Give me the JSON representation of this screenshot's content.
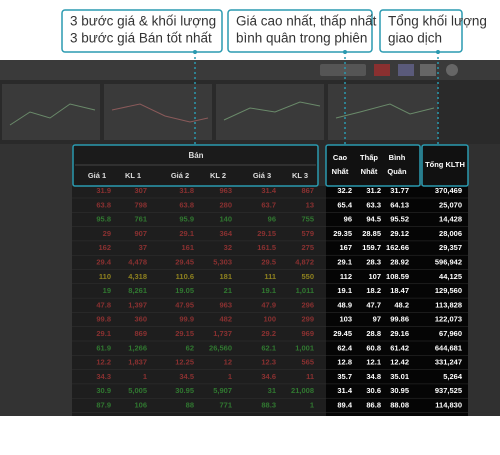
{
  "callouts": [
    {
      "lines": [
        "3 bước giá & khối lượng",
        "3 bước giá Bán tốt nhất"
      ]
    },
    {
      "lines": [
        "Giá cao nhất, thấp nhất",
        "bình quân trong phiên"
      ]
    },
    {
      "lines": [
        "Tổng khối lượng",
        "giao dịch"
      ]
    }
  ],
  "table": {
    "group_header": "Bán",
    "sell_columns": [
      "Giá 1",
      "KL 1",
      "Giá 2",
      "KL 2",
      "Giá 3",
      "KL 3"
    ],
    "stat_columns": [
      [
        "Cao",
        "Nhất"
      ],
      [
        "Thấp",
        "Nhất"
      ],
      [
        "Bình",
        "Quân"
      ]
    ],
    "total_column": "Tổng KLTH",
    "rows": [
      [
        "31.9",
        "307",
        "31.8",
        "963",
        "31.4",
        "867",
        "32.2",
        "31.2",
        "31.77",
        "370,469"
      ],
      [
        "63.8",
        "798",
        "63.8",
        "280",
        "63.7",
        "13",
        "65.4",
        "63.3",
        "64.13",
        "25,070"
      ],
      [
        "95.8",
        "761",
        "95.9",
        "140",
        "96",
        "755",
        "96",
        "94.5",
        "95.52",
        "14,428"
      ],
      [
        "29",
        "907",
        "29.1",
        "364",
        "29.15",
        "579",
        "29.35",
        "28.85",
        "29.12",
        "28,006"
      ],
      [
        "162",
        "37",
        "161",
        "32",
        "161.5",
        "275",
        "167",
        "159.7",
        "162.66",
        "29,357"
      ],
      [
        "29.4",
        "4,478",
        "29.45",
        "5,303",
        "29.5",
        "4,872",
        "29.1",
        "28.3",
        "28.92",
        "596,942"
      ],
      [
        "110",
        "4,318",
        "110.6",
        "181",
        "111",
        "550",
        "112",
        "107",
        "108.59",
        "44,125"
      ],
      [
        "19",
        "8,261",
        "19.05",
        "21",
        "19.1",
        "1,011",
        "19.1",
        "18.2",
        "18.47",
        "129,560"
      ],
      [
        "47.8",
        "1,397",
        "47.95",
        "963",
        "47.9",
        "296",
        "48.9",
        "47.7",
        "48.2",
        "113,828"
      ],
      [
        "99.8",
        "360",
        "99.9",
        "482",
        "100",
        "299",
        "103",
        "97",
        "99.86",
        "122,073"
      ],
      [
        "29.1",
        "869",
        "29.15",
        "1,737",
        "29.2",
        "969",
        "29.45",
        "28.8",
        "29.16",
        "67,960"
      ],
      [
        "61.9",
        "1,266",
        "62",
        "26,560",
        "62.1",
        "1,001",
        "62.4",
        "60.8",
        "61.42",
        "644,681"
      ],
      [
        "12.2",
        "1,837",
        "12.25",
        "12",
        "12.3",
        "565",
        "12.8",
        "12.1",
        "12.42",
        "331,247"
      ],
      [
        "34.3",
        "1",
        "34.5",
        "1",
        "34.6",
        "11",
        "35.7",
        "34.8",
        "35.01",
        "5,264"
      ],
      [
        "30.9",
        "5,005",
        "30.95",
        "5,907",
        "31",
        "21,008",
        "31.4",
        "30.6",
        "30.95",
        "937,525"
      ],
      [
        "87.9",
        "106",
        "88",
        "771",
        "88.3",
        "1",
        "89.4",
        "86.8",
        "88.08",
        "114,830"
      ]
    ],
    "row_colors": [
      "#e04040",
      "#e04040",
      "#3fc03f",
      "#e04040",
      "#e04040",
      "#e04040",
      "#e8d020",
      "#3fc03f",
      "#e04040",
      "#e04040",
      "#e04040",
      "#3fc03f",
      "#e04040",
      "#e04040",
      "#3fc03f",
      "#3fc03f"
    ]
  }
}
